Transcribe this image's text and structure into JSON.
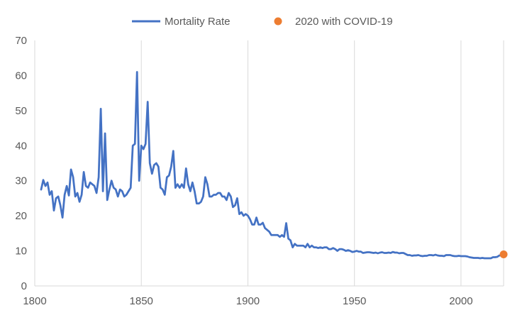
{
  "chart_data": {
    "type": "line",
    "title": "",
    "xlabel": "",
    "ylabel": "",
    "xlim": [
      1800,
      2020
    ],
    "ylim": [
      0,
      70
    ],
    "x_ticks": [
      1800,
      1850,
      1900,
      1950,
      2000
    ],
    "y_ticks": [
      0,
      10,
      20,
      30,
      40,
      50,
      60,
      70
    ],
    "grid": "vertical",
    "legend_position": "top-center",
    "series": [
      {
        "name": "Mortality Rate",
        "color": "#4472C4",
        "points": [
          [
            1803,
            27.5
          ],
          [
            1804,
            30.2
          ],
          [
            1805,
            28.5
          ],
          [
            1806,
            29.5
          ],
          [
            1807,
            26.0
          ],
          [
            1808,
            27.0
          ],
          [
            1809,
            21.5
          ],
          [
            1810,
            25.0
          ],
          [
            1811,
            25.5
          ],
          [
            1812,
            23.0
          ],
          [
            1813,
            19.5
          ],
          [
            1814,
            26.0
          ],
          [
            1815,
            28.5
          ],
          [
            1816,
            25.8
          ],
          [
            1817,
            33.2
          ],
          [
            1818,
            31.0
          ],
          [
            1819,
            25.5
          ],
          [
            1820,
            26.5
          ],
          [
            1821,
            24.0
          ],
          [
            1822,
            26.0
          ],
          [
            1823,
            32.5
          ],
          [
            1824,
            28.5
          ],
          [
            1825,
            28.0
          ],
          [
            1826,
            29.5
          ],
          [
            1827,
            29.0
          ],
          [
            1828,
            28.5
          ],
          [
            1829,
            26.5
          ],
          [
            1830,
            31.0
          ],
          [
            1831,
            50.5
          ],
          [
            1832,
            27.0
          ],
          [
            1833,
            43.5
          ],
          [
            1834,
            24.5
          ],
          [
            1835,
            27.5
          ],
          [
            1836,
            30.0
          ],
          [
            1837,
            28.0
          ],
          [
            1838,
            27.5
          ],
          [
            1839,
            25.5
          ],
          [
            1840,
            27.5
          ],
          [
            1841,
            27.0
          ],
          [
            1842,
            25.5
          ],
          [
            1843,
            26.0
          ],
          [
            1844,
            27.0
          ],
          [
            1845,
            28.0
          ],
          [
            1846,
            40.0
          ],
          [
            1847,
            40.5
          ],
          [
            1848,
            61.0
          ],
          [
            1849,
            30.0
          ],
          [
            1850,
            40.0
          ],
          [
            1851,
            39.0
          ],
          [
            1852,
            40.5
          ],
          [
            1853,
            52.5
          ],
          [
            1854,
            35.0
          ],
          [
            1855,
            32.0
          ],
          [
            1856,
            34.5
          ],
          [
            1857,
            35.0
          ],
          [
            1858,
            34.0
          ],
          [
            1859,
            28.0
          ],
          [
            1860,
            27.5
          ],
          [
            1861,
            26.0
          ],
          [
            1862,
            31.0
          ],
          [
            1863,
            31.5
          ],
          [
            1864,
            34.0
          ],
          [
            1865,
            38.5
          ],
          [
            1866,
            28.0
          ],
          [
            1867,
            29.0
          ],
          [
            1868,
            28.0
          ],
          [
            1869,
            29.0
          ],
          [
            1870,
            28.0
          ],
          [
            1871,
            33.5
          ],
          [
            1872,
            29.0
          ],
          [
            1873,
            27.0
          ],
          [
            1874,
            29.5
          ],
          [
            1875,
            27.0
          ],
          [
            1876,
            23.5
          ],
          [
            1877,
            23.5
          ],
          [
            1878,
            24.0
          ],
          [
            1879,
            25.5
          ],
          [
            1880,
            31.0
          ],
          [
            1881,
            29.0
          ],
          [
            1882,
            25.5
          ],
          [
            1883,
            25.5
          ],
          [
            1884,
            26.0
          ],
          [
            1885,
            26.0
          ],
          [
            1886,
            26.5
          ],
          [
            1887,
            26.5
          ],
          [
            1888,
            25.5
          ],
          [
            1889,
            25.5
          ],
          [
            1890,
            24.5
          ],
          [
            1891,
            26.5
          ],
          [
            1892,
            25.5
          ],
          [
            1893,
            22.5
          ],
          [
            1894,
            23.0
          ],
          [
            1895,
            25.0
          ],
          [
            1896,
            20.5
          ],
          [
            1897,
            21.0
          ],
          [
            1898,
            20.0
          ],
          [
            1899,
            20.5
          ],
          [
            1900,
            20.0
          ],
          [
            1901,
            19.0
          ],
          [
            1902,
            17.5
          ],
          [
            1903,
            17.5
          ],
          [
            1904,
            19.5
          ],
          [
            1905,
            17.5
          ],
          [
            1906,
            17.5
          ],
          [
            1907,
            18.0
          ],
          [
            1908,
            16.5
          ],
          [
            1909,
            16.0
          ],
          [
            1910,
            15.5
          ],
          [
            1911,
            14.5
          ],
          [
            1912,
            14.5
          ],
          [
            1913,
            14.5
          ],
          [
            1914,
            14.5
          ],
          [
            1915,
            14.0
          ],
          [
            1916,
            14.5
          ],
          [
            1917,
            14.0
          ],
          [
            1918,
            17.9
          ],
          [
            1919,
            13.5
          ],
          [
            1920,
            13.0
          ],
          [
            1921,
            11.0
          ],
          [
            1922,
            12.0
          ],
          [
            1923,
            11.5
          ],
          [
            1924,
            11.5
          ],
          [
            1925,
            11.5
          ],
          [
            1926,
            11.5
          ],
          [
            1927,
            11.0
          ],
          [
            1928,
            12.0
          ],
          [
            1929,
            11.0
          ],
          [
            1930,
            11.5
          ],
          [
            1931,
            11.0
          ],
          [
            1932,
            11.0
          ],
          [
            1933,
            10.8
          ],
          [
            1934,
            11.0
          ],
          [
            1935,
            10.8
          ],
          [
            1936,
            11.0
          ],
          [
            1937,
            11.0
          ],
          [
            1938,
            10.5
          ],
          [
            1939,
            10.5
          ],
          [
            1940,
            10.8
          ],
          [
            1941,
            10.5
          ],
          [
            1942,
            10.0
          ],
          [
            1943,
            10.5
          ],
          [
            1944,
            10.5
          ],
          [
            1945,
            10.3
          ],
          [
            1946,
            10.0
          ],
          [
            1947,
            10.2
          ],
          [
            1948,
            10.0
          ],
          [
            1949,
            9.7
          ],
          [
            1950,
            9.8
          ],
          [
            1951,
            10.0
          ],
          [
            1952,
            9.8
          ],
          [
            1953,
            9.8
          ],
          [
            1954,
            9.4
          ],
          [
            1955,
            9.5
          ],
          [
            1956,
            9.6
          ],
          [
            1957,
            9.6
          ],
          [
            1958,
            9.5
          ],
          [
            1959,
            9.4
          ],
          [
            1960,
            9.5
          ],
          [
            1961,
            9.3
          ],
          [
            1962,
            9.5
          ],
          [
            1963,
            9.6
          ],
          [
            1964,
            9.4
          ],
          [
            1965,
            9.4
          ],
          [
            1966,
            9.5
          ],
          [
            1967,
            9.4
          ],
          [
            1968,
            9.7
          ],
          [
            1969,
            9.5
          ],
          [
            1970,
            9.5
          ],
          [
            1971,
            9.3
          ],
          [
            1972,
            9.4
          ],
          [
            1973,
            9.4
          ],
          [
            1974,
            9.1
          ],
          [
            1975,
            8.8
          ],
          [
            1976,
            8.8
          ],
          [
            1977,
            8.6
          ],
          [
            1978,
            8.7
          ],
          [
            1979,
            8.7
          ],
          [
            1980,
            8.8
          ],
          [
            1981,
            8.6
          ],
          [
            1982,
            8.5
          ],
          [
            1983,
            8.6
          ],
          [
            1984,
            8.6
          ],
          [
            1985,
            8.8
          ],
          [
            1986,
            8.8
          ],
          [
            1987,
            8.7
          ],
          [
            1988,
            8.9
          ],
          [
            1989,
            8.7
          ],
          [
            1990,
            8.6
          ],
          [
            1991,
            8.6
          ],
          [
            1992,
            8.5
          ],
          [
            1993,
            8.8
          ],
          [
            1994,
            8.8
          ],
          [
            1995,
            8.8
          ],
          [
            1996,
            8.6
          ],
          [
            1997,
            8.5
          ],
          [
            1998,
            8.5
          ],
          [
            1999,
            8.6
          ],
          [
            2000,
            8.5
          ],
          [
            2001,
            8.5
          ],
          [
            2002,
            8.5
          ],
          [
            2003,
            8.4
          ],
          [
            2004,
            8.2
          ],
          [
            2005,
            8.1
          ],
          [
            2006,
            8.0
          ],
          [
            2007,
            8.0
          ],
          [
            2008,
            8.0
          ],
          [
            2009,
            7.9
          ],
          [
            2010,
            8.0
          ],
          [
            2011,
            7.9
          ],
          [
            2012,
            7.9
          ],
          [
            2013,
            7.9
          ],
          [
            2014,
            7.9
          ],
          [
            2015,
            8.2
          ],
          [
            2016,
            8.2
          ],
          [
            2017,
            8.3
          ],
          [
            2018,
            8.7
          ],
          [
            2019,
            8.7
          ]
        ]
      },
      {
        "name": "2020 with COVID-19",
        "color": "#ED7D31",
        "points": [
          [
            2020,
            9.0
          ]
        ]
      }
    ]
  }
}
